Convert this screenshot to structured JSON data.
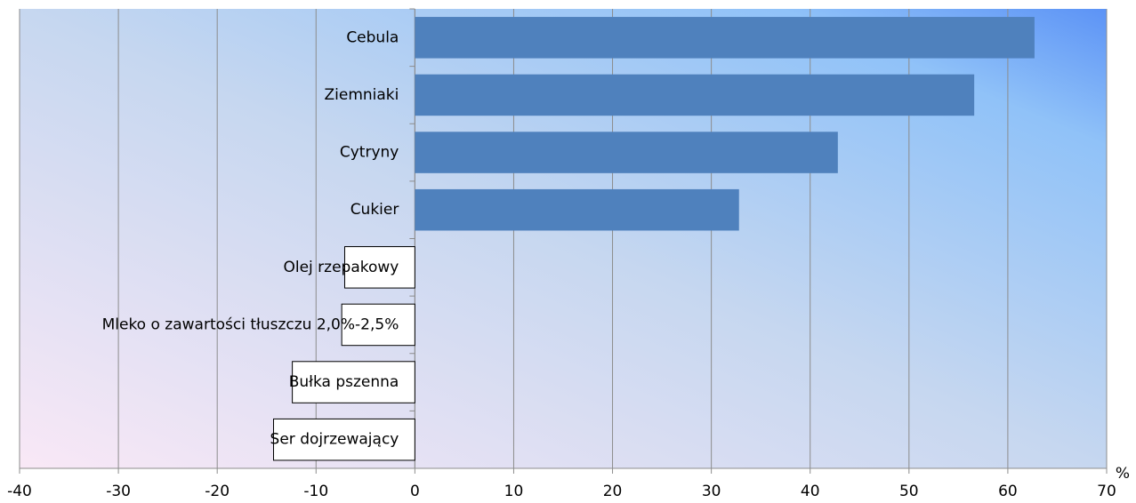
{
  "chart_data": {
    "type": "barh",
    "categories": [
      "Cebula",
      "Ziemniaki",
      "Cytryny",
      "Cukier",
      "Olej rzepakowy",
      "Mleko o zawartości tłuszczu 2,0%-2,5%",
      "Bułka pszenna",
      "Ser dojrzewający"
    ],
    "values": [
      62.7,
      56.6,
      42.8,
      32.8,
      -7.1,
      -7.4,
      -12.4,
      -14.3
    ],
    "color": "#4f81bd",
    "negative_color": "#ffffff",
    "xlabel": "%",
    "xlim": [
      -40,
      70
    ],
    "xticks": [
      -40,
      -30,
      -20,
      -10,
      0,
      10,
      20,
      30,
      40,
      50,
      60,
      70
    ],
    "grid": true
  }
}
